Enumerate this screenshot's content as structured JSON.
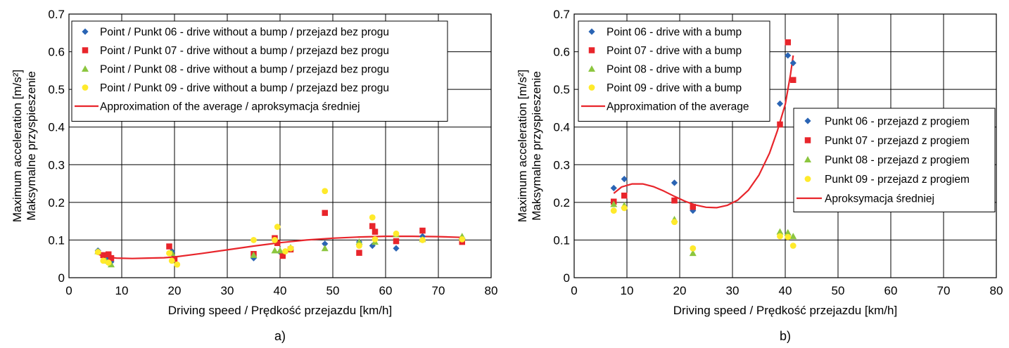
{
  "colors": {
    "p06": "#2a64b4",
    "p07": "#e8252b",
    "p08": "#8cc63f",
    "p09": "#ffea2b",
    "fit": "#e8252b",
    "grid": "#000000"
  },
  "chart_data": [
    {
      "type": "scatter",
      "panel_label": "a)",
      "xlabel": "Driving speed / Prędkość przejazdu [km/h]",
      "ylabel_line1": "Maximum acceleration [m/s²]",
      "ylabel_line2": "Maksymalne przyspieszenie",
      "xlim": [
        0,
        80
      ],
      "ylim": [
        0,
        0.7
      ],
      "xticks": [
        "0",
        "10",
        "20",
        "30",
        "40",
        "50",
        "60",
        "70",
        "80"
      ],
      "yticks": [
        "0",
        "0.1",
        "0.2",
        "0.3",
        "0.4",
        "0.5",
        "0.6",
        "0.7"
      ],
      "grid": true,
      "legend_position": "top-left",
      "series": [
        {
          "name": "Point / Punkt 06 - drive without a bump / przejazd bez progu",
          "marker": "diamond",
          "color_key": "p06",
          "points": [
            [
              5.5,
              0.072
            ],
            [
              7.5,
              0.052
            ],
            [
              8,
              0.042
            ],
            [
              19.5,
              0.07
            ],
            [
              35,
              0.052
            ],
            [
              40,
              0.068
            ],
            [
              42,
              0.078
            ],
            [
              48.5,
              0.09
            ],
            [
              55,
              0.095
            ],
            [
              57.5,
              0.085
            ],
            [
              62,
              0.078
            ],
            [
              67,
              0.11
            ],
            [
              74.5,
              0.105
            ]
          ]
        },
        {
          "name": "Point / Punkt 07 - drive without a bump / przejazd bez progu",
          "marker": "square",
          "color_key": "p07",
          "points": [
            [
              6.5,
              0.06
            ],
            [
              7.5,
              0.062
            ],
            [
              8,
              0.052
            ],
            [
              19,
              0.083
            ],
            [
              20,
              0.05
            ],
            [
              35,
              0.063
            ],
            [
              39,
              0.105
            ],
            [
              39.5,
              0.092
            ],
            [
              40.5,
              0.058
            ],
            [
              42,
              0.075
            ],
            [
              48.5,
              0.172
            ],
            [
              55,
              0.066
            ],
            [
              57.5,
              0.137
            ],
            [
              58,
              0.122
            ],
            [
              62,
              0.097
            ],
            [
              67,
              0.125
            ],
            [
              74.5,
              0.095
            ]
          ]
        },
        {
          "name": "Point / Punkt 08 - drive without a bump / przejazd bez progu",
          "marker": "triangle",
          "color_key": "p08",
          "points": [
            [
              5.5,
              0.07
            ],
            [
              7,
              0.045
            ],
            [
              8,
              0.035
            ],
            [
              19.5,
              0.065
            ],
            [
              35,
              0.06
            ],
            [
              39,
              0.072
            ],
            [
              40,
              0.072
            ],
            [
              42,
              0.08
            ],
            [
              48.5,
              0.078
            ],
            [
              55,
              0.095
            ],
            [
              58,
              0.095
            ],
            [
              62,
              0.115
            ],
            [
              67,
              0.102
            ],
            [
              74.5,
              0.11
            ]
          ]
        },
        {
          "name": "Point / Punkt 09 - drive without a bump / przejazd bez progu",
          "marker": "circle",
          "color_key": "p09",
          "points": [
            [
              5.5,
              0.068
            ],
            [
              6.5,
              0.045
            ],
            [
              7.5,
              0.04
            ],
            [
              19,
              0.065
            ],
            [
              19.5,
              0.045
            ],
            [
              20.5,
              0.035
            ],
            [
              35,
              0.1
            ],
            [
              39,
              0.1
            ],
            [
              39.5,
              0.135
            ],
            [
              41,
              0.07
            ],
            [
              42,
              0.078
            ],
            [
              48.5,
              0.23
            ],
            [
              55,
              0.085
            ],
            [
              57.5,
              0.16
            ],
            [
              58,
              0.102
            ],
            [
              62,
              0.117
            ],
            [
              67,
              0.1
            ],
            [
              74.5,
              0.102
            ]
          ]
        },
        {
          "name": "Approximation of the average / aproksymacja średniej",
          "marker": "line",
          "color_key": "fit",
          "points": [
            [
              5,
              0.065
            ],
            [
              7,
              0.055
            ],
            [
              9,
              0.052
            ],
            [
              12,
              0.051
            ],
            [
              15,
              0.052
            ],
            [
              18,
              0.053
            ],
            [
              20,
              0.055
            ],
            [
              25,
              0.064
            ],
            [
              30,
              0.074
            ],
            [
              35,
              0.084
            ],
            [
              40,
              0.093
            ],
            [
              45,
              0.1
            ],
            [
              50,
              0.105
            ],
            [
              55,
              0.108
            ],
            [
              60,
              0.11
            ],
            [
              65,
              0.11
            ],
            [
              70,
              0.109
            ],
            [
              74.5,
              0.107
            ]
          ]
        }
      ]
    },
    {
      "type": "scatter",
      "panel_label": "b)",
      "xlabel": "Driving speed / Prędkość przejazdu [km/h]",
      "ylabel_line1": "Maximum acceleration [m/s²]",
      "ylabel_line2": "Maksymalne przyspieszenie",
      "xlim": [
        0,
        80
      ],
      "ylim": [
        0,
        0.7
      ],
      "xticks": [
        "0",
        "10",
        "20",
        "30",
        "40",
        "50",
        "60",
        "70",
        "80"
      ],
      "yticks": [
        "0",
        "0.1",
        "0.2",
        "0.3",
        "0.4",
        "0.5",
        "0.6",
        "0.7"
      ],
      "grid": true,
      "legend_position": "top-left",
      "legend2_position": "right",
      "legend2": [
        "Punkt 06 - przejazd z progiem",
        "Punkt 07 - przejazd z progiem",
        "Punkt 08 - przejazd z progiem",
        "Punkt 09 - przejazd z progiem",
        "Aproksymacja średniej"
      ],
      "series": [
        {
          "name": "Point 06 - drive with a bump",
          "marker": "diamond",
          "color_key": "p06",
          "points": [
            [
              7.5,
              0.238
            ],
            [
              9.5,
              0.262
            ],
            [
              19,
              0.252
            ],
            [
              22.5,
              0.178
            ],
            [
              39,
              0.462
            ],
            [
              40.5,
              0.59
            ],
            [
              41.5,
              0.57
            ]
          ]
        },
        {
          "name": "Point 07 - drive with a bump",
          "marker": "square",
          "color_key": "p07",
          "points": [
            [
              7.5,
              0.202
            ],
            [
              9.5,
              0.218
            ],
            [
              19,
              0.205
            ],
            [
              22.5,
              0.188
            ],
            [
              39,
              0.407
            ],
            [
              40.5,
              0.625
            ],
            [
              41.5,
              0.525
            ]
          ]
        },
        {
          "name": "Point 08 - drive with a bump",
          "marker": "triangle",
          "color_key": "p08",
          "points": [
            [
              7.5,
              0.195
            ],
            [
              9.5,
              0.192
            ],
            [
              19,
              0.155
            ],
            [
              22.5,
              0.065
            ],
            [
              39,
              0.122
            ],
            [
              40.5,
              0.12
            ],
            [
              41.5,
              0.11
            ]
          ]
        },
        {
          "name": "Point 09 - drive with a bump",
          "marker": "circle",
          "color_key": "p09",
          "points": [
            [
              7.5,
              0.178
            ],
            [
              9.5,
              0.185
            ],
            [
              19,
              0.148
            ],
            [
              22.5,
              0.078
            ],
            [
              39,
              0.11
            ],
            [
              40.5,
              0.108
            ],
            [
              41.5,
              0.085
            ]
          ]
        },
        {
          "name": "Approximation of the average",
          "marker": "line",
          "color_key": "fit",
          "points": [
            [
              7.5,
              0.224
            ],
            [
              9,
              0.241
            ],
            [
              11,
              0.249
            ],
            [
              13,
              0.249
            ],
            [
              15,
              0.242
            ],
            [
              17,
              0.23
            ],
            [
              19,
              0.216
            ],
            [
              21,
              0.203
            ],
            [
              23,
              0.193
            ],
            [
              25,
              0.187
            ],
            [
              27,
              0.186
            ],
            [
              29,
              0.192
            ],
            [
              31,
              0.206
            ],
            [
              33,
              0.232
            ],
            [
              35,
              0.272
            ],
            [
              37,
              0.33
            ],
            [
              38.5,
              0.39
            ],
            [
              40,
              0.46
            ],
            [
              41,
              0.54
            ],
            [
              41.5,
              0.59
            ]
          ]
        }
      ]
    }
  ]
}
